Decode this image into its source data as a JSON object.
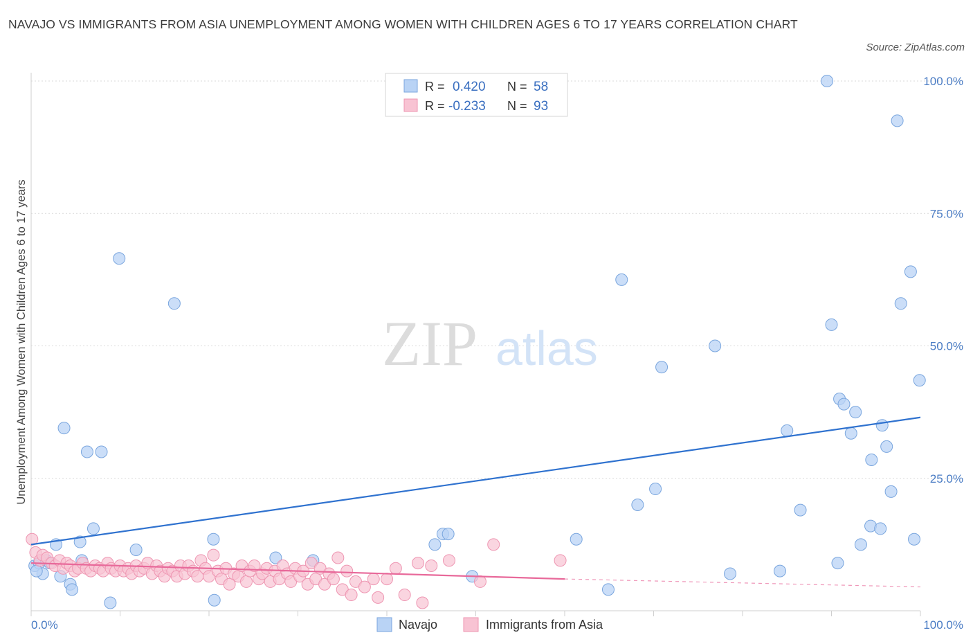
{
  "title": "NAVAJO VS IMMIGRANTS FROM ASIA UNEMPLOYMENT AMONG WOMEN WITH CHILDREN AGES 6 TO 17 YEARS CORRELATION CHART",
  "source": "Source: ZipAtlas.com",
  "watermark": {
    "zip": "ZIP",
    "atlas": "atlas"
  },
  "colors": {
    "navajo_fill": "#b9d3f5",
    "navajo_stroke": "#7aa6de",
    "navajo_line": "#2f72cf",
    "asia_fill": "#f8c3d3",
    "asia_stroke": "#ee96b2",
    "asia_line": "#e8699a",
    "grid": "#d9d9d9",
    "tick_label": "#4a7cc4"
  },
  "legend": {
    "rows": [
      {
        "r_label": "R =",
        "r_value": "0.420",
        "n_label": "N =",
        "n_value": "58"
      },
      {
        "r_label": "R =",
        "r_value": "-0.233",
        "n_label": "N =",
        "n_value": "93"
      }
    ]
  },
  "chart_data": {
    "type": "scatter",
    "xlabel": "",
    "ylabel": "Unemployment Among Women with Children Ages 6 to 17 years",
    "xlim": [
      0,
      100
    ],
    "ylim": [
      0,
      100
    ],
    "x_tick_labels": [
      "0.0%",
      "100.0%"
    ],
    "y_ticks": [
      25,
      50,
      75,
      100
    ],
    "y_tick_labels": [
      "25.0%",
      "50.0%",
      "75.0%",
      "100.0%"
    ],
    "grid": true,
    "legend_position": "top-center",
    "series": [
      {
        "name": "Navajo",
        "points": [
          [
            0.4,
            8.5
          ],
          [
            0.9,
            9.0
          ],
          [
            1.3,
            7.0
          ],
          [
            1.7,
            9.5
          ],
          [
            2.1,
            9.0
          ],
          [
            2.8,
            12.5
          ],
          [
            3.3,
            6.5
          ],
          [
            3.7,
            34.5
          ],
          [
            4.4,
            5.0
          ],
          [
            4.6,
            4.0
          ],
          [
            5.5,
            13.0
          ],
          [
            5.7,
            9.5
          ],
          [
            6.3,
            30.0
          ],
          [
            7.0,
            15.5
          ],
          [
            7.9,
            30.0
          ],
          [
            8.9,
            1.5
          ],
          [
            9.9,
            66.5
          ],
          [
            11.8,
            11.5
          ],
          [
            16.1,
            58.0
          ],
          [
            20.6,
            2.0
          ],
          [
            20.5,
            13.5
          ],
          [
            27.5,
            10.0
          ],
          [
            31.7,
            9.5
          ],
          [
            45.4,
            12.5
          ],
          [
            46.3,
            14.5
          ],
          [
            46.9,
            14.5
          ],
          [
            49.6,
            6.5
          ],
          [
            61.3,
            13.5
          ],
          [
            64.9,
            4.0
          ],
          [
            66.4,
            62.5
          ],
          [
            68.2,
            20.0
          ],
          [
            70.2,
            23.0
          ],
          [
            70.9,
            46.0
          ],
          [
            76.9,
            50.0
          ],
          [
            78.6,
            7.0
          ],
          [
            84.2,
            7.5
          ],
          [
            85.0,
            34.0
          ],
          [
            86.5,
            19.0
          ],
          [
            89.5,
            100.0
          ],
          [
            90.0,
            54.0
          ],
          [
            90.7,
            9.0
          ],
          [
            90.9,
            40.0
          ],
          [
            91.4,
            39.0
          ],
          [
            92.2,
            33.5
          ],
          [
            92.7,
            37.5
          ],
          [
            93.3,
            12.5
          ],
          [
            94.4,
            16.0
          ],
          [
            94.5,
            28.5
          ],
          [
            95.5,
            15.5
          ],
          [
            95.7,
            35.0
          ],
          [
            96.2,
            31.0
          ],
          [
            96.7,
            22.5
          ],
          [
            97.4,
            92.5
          ],
          [
            97.8,
            58.0
          ],
          [
            98.9,
            64.0
          ],
          [
            99.3,
            13.5
          ],
          [
            99.9,
            43.5
          ],
          [
            0.6,
            7.5
          ]
        ]
      },
      {
        "name": "Immigrants from Asia",
        "points": [
          [
            0.1,
            13.5
          ],
          [
            0.5,
            11.0
          ],
          [
            1.0,
            9.5
          ],
          [
            1.3,
            10.5
          ],
          [
            1.8,
            10.0
          ],
          [
            2.3,
            9.0
          ],
          [
            2.7,
            8.5
          ],
          [
            3.2,
            9.5
          ],
          [
            3.6,
            8.0
          ],
          [
            4.0,
            9.0
          ],
          [
            4.4,
            8.5
          ],
          [
            4.9,
            7.5
          ],
          [
            5.3,
            8.0
          ],
          [
            5.8,
            9.0
          ],
          [
            6.2,
            8.0
          ],
          [
            6.7,
            7.5
          ],
          [
            7.2,
            8.5
          ],
          [
            7.7,
            8.0
          ],
          [
            8.1,
            7.5
          ],
          [
            8.6,
            9.0
          ],
          [
            9.0,
            8.0
          ],
          [
            9.5,
            7.5
          ],
          [
            10.0,
            8.5
          ],
          [
            10.4,
            7.5
          ],
          [
            10.9,
            8.0
          ],
          [
            11.3,
            7.0
          ],
          [
            11.8,
            8.5
          ],
          [
            12.2,
            7.5
          ],
          [
            12.7,
            8.0
          ],
          [
            13.1,
            9.0
          ],
          [
            13.6,
            7.0
          ],
          [
            14.1,
            8.5
          ],
          [
            14.5,
            7.5
          ],
          [
            15.0,
            6.5
          ],
          [
            15.4,
            8.0
          ],
          [
            15.9,
            7.5
          ],
          [
            16.4,
            6.5
          ],
          [
            16.8,
            8.5
          ],
          [
            17.3,
            7.0
          ],
          [
            17.7,
            8.5
          ],
          [
            18.2,
            7.5
          ],
          [
            18.7,
            6.5
          ],
          [
            19.1,
            9.5
          ],
          [
            19.6,
            8.0
          ],
          [
            20.0,
            6.5
          ],
          [
            20.5,
            10.5
          ],
          [
            21.0,
            7.5
          ],
          [
            21.4,
            6.0
          ],
          [
            21.9,
            8.0
          ],
          [
            22.3,
            5.0
          ],
          [
            22.8,
            7.0
          ],
          [
            23.3,
            6.5
          ],
          [
            23.7,
            8.5
          ],
          [
            24.2,
            5.5
          ],
          [
            24.6,
            7.5
          ],
          [
            25.1,
            8.5
          ],
          [
            25.6,
            6.0
          ],
          [
            26.0,
            7.0
          ],
          [
            26.5,
            8.0
          ],
          [
            26.9,
            5.5
          ],
          [
            27.4,
            7.5
          ],
          [
            27.9,
            6.0
          ],
          [
            28.3,
            8.5
          ],
          [
            28.8,
            7.0
          ],
          [
            29.2,
            5.5
          ],
          [
            29.7,
            8.0
          ],
          [
            30.2,
            6.5
          ],
          [
            30.6,
            7.5
          ],
          [
            31.1,
            5.0
          ],
          [
            31.5,
            9.0
          ],
          [
            32.0,
            6.0
          ],
          [
            32.5,
            8.0
          ],
          [
            33.0,
            5.0
          ],
          [
            33.5,
            7.0
          ],
          [
            34.0,
            6.0
          ],
          [
            34.5,
            10.0
          ],
          [
            35.0,
            4.0
          ],
          [
            35.5,
            7.5
          ],
          [
            36.0,
            3.0
          ],
          [
            36.5,
            5.5
          ],
          [
            37.5,
            4.5
          ],
          [
            38.5,
            6.0
          ],
          [
            39.0,
            2.5
          ],
          [
            40.0,
            6.0
          ],
          [
            41.0,
            8.0
          ],
          [
            42.0,
            3.0
          ],
          [
            43.5,
            9.0
          ],
          [
            44.0,
            1.5
          ],
          [
            45.0,
            8.5
          ],
          [
            47.0,
            9.5
          ],
          [
            50.5,
            5.5
          ],
          [
            52.0,
            12.5
          ],
          [
            59.5,
            9.5
          ]
        ]
      }
    ],
    "trendlines": [
      {
        "series": "Navajo",
        "from": [
          0,
          12.5
        ],
        "to": [
          100,
          36.5
        ]
      },
      {
        "series": "Immigrants from Asia",
        "from": [
          0,
          9.0
        ],
        "to": [
          60,
          6.0
        ],
        "dashed_to": [
          100,
          4.5
        ]
      }
    ]
  }
}
